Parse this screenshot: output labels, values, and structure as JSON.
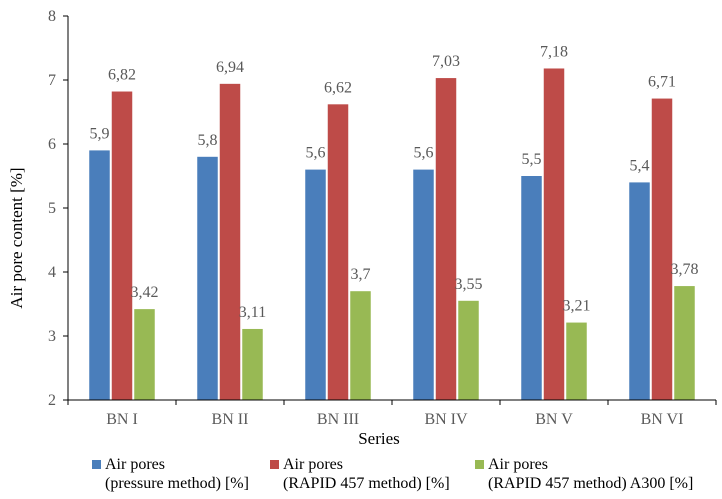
{
  "chart_data": {
    "type": "bar",
    "title": "",
    "xlabel": "Series",
    "ylabel": "Air pore content [%]",
    "ylim": [
      2,
      8
    ],
    "yticks": [
      2,
      3,
      4,
      5,
      6,
      7,
      8
    ],
    "grid": false,
    "legend_position": "bottom",
    "categories": [
      "BN I",
      "BN II",
      "BN III",
      "BN IV",
      "BN V",
      "BN VI"
    ],
    "series": [
      {
        "name": "Air pores\n(pressure method) [%]",
        "color": "#4a7ebb",
        "values": [
          5.9,
          5.8,
          5.6,
          5.6,
          5.5,
          5.4
        ],
        "labels": [
          "5,9",
          "5,8",
          "5,6",
          "5,6",
          "5,5",
          "5,4"
        ]
      },
      {
        "name": "Air pores\n(RAPID 457 method) [%]",
        "color": "#be4b48",
        "values": [
          6.82,
          6.94,
          6.62,
          7.03,
          7.18,
          6.71
        ],
        "labels": [
          "6,82",
          "6,94",
          "6,62",
          "7,03",
          "7,18",
          "6,71"
        ]
      },
      {
        "name": "Air pores\n(RAPID 457 method) A300 [%]",
        "color": "#98b954",
        "values": [
          3.42,
          3.11,
          3.7,
          3.55,
          3.21,
          3.78
        ],
        "labels": [
          "3,42",
          "3,11",
          "3,7",
          "3,55",
          "3,21",
          "3,78"
        ]
      }
    ]
  }
}
